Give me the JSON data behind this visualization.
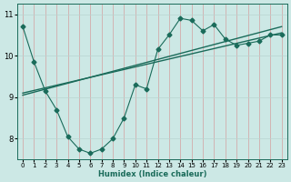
{
  "xlabel": "Humidex (Indice chaleur)",
  "bg_color": "#cce8e5",
  "grid_color_v": "#d4a0a0",
  "grid_color_h": "#b8d4d0",
  "line_color": "#1a6b5a",
  "xlim": [
    -0.5,
    23.5
  ],
  "ylim": [
    7.5,
    11.25
  ],
  "yticks": [
    8,
    9,
    10,
    11
  ],
  "xticks": [
    0,
    1,
    2,
    3,
    4,
    5,
    6,
    7,
    8,
    9,
    10,
    11,
    12,
    13,
    14,
    15,
    16,
    17,
    18,
    19,
    20,
    21,
    22,
    23
  ],
  "line1_x": [
    0,
    1,
    2,
    3,
    4,
    5,
    6,
    7,
    8,
    9,
    10,
    11,
    12,
    13,
    14,
    15,
    16,
    17,
    18,
    19,
    20,
    21,
    22,
    23
  ],
  "line1_y": [
    10.7,
    9.85,
    9.15,
    8.7,
    8.05,
    7.75,
    7.65,
    7.75,
    8.0,
    8.5,
    9.3,
    9.2,
    10.15,
    10.5,
    10.9,
    10.85,
    10.6,
    10.75,
    10.4,
    10.25,
    10.3,
    10.35,
    10.5,
    10.5
  ],
  "line2_x": [
    0,
    23
  ],
  "line2_y": [
    9.1,
    10.55
  ],
  "line3_x": [
    0,
    23
  ],
  "line3_y": [
    9.05,
    10.7
  ]
}
